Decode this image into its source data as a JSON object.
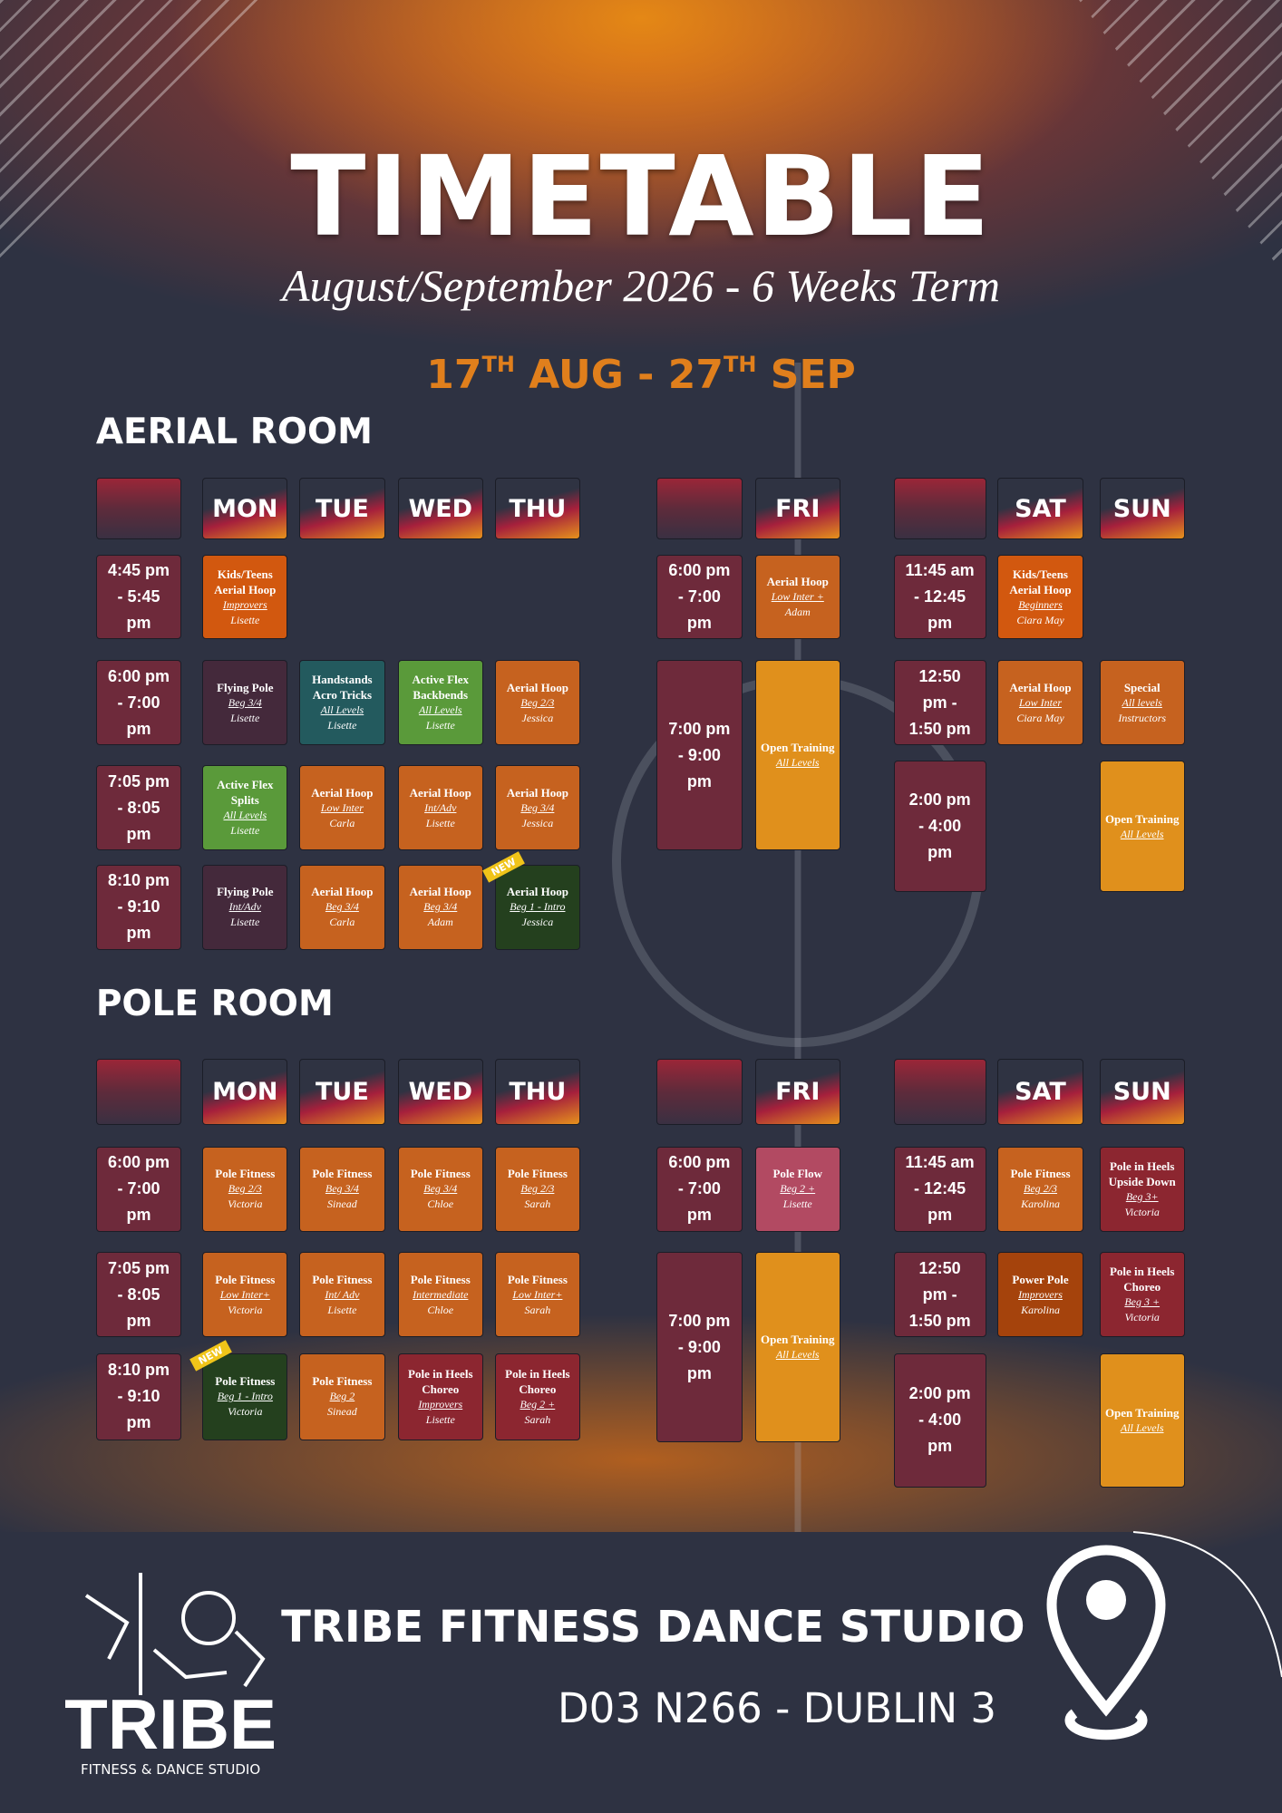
{
  "header": {
    "title": "TIMETABLE",
    "subtitle": "August/September 2026 - 6 Weeks Term",
    "dates": {
      "start_day": "17",
      "start_suffix": "TH",
      "start_month": "AUG",
      "separator": "-",
      "end_day": "27",
      "end_suffix": "TH",
      "end_month": "SEP"
    }
  },
  "rooms": [
    {
      "name": "AERIAL ROOM",
      "groups": [
        {
          "days": [
            "MON",
            "TUE",
            "WED",
            "THU"
          ],
          "slots": [
            {
              "time": "4:45 pm - 5:45 pm",
              "classes": [
                {
                  "title": "Kids/Teens Aerial Hoop",
                  "level": "Improvers",
                  "instructor": "Lisette",
                  "color": "#d2580f"
                },
                null,
                null,
                null
              ]
            },
            {
              "time": "6:00 pm - 7:00 pm",
              "classes": [
                {
                  "title": "Flying Pole",
                  "level": "Beg 3/4",
                  "instructor": "Lisette",
                  "color": "#44293b"
                },
                {
                  "title": "Handstands Acro Tricks",
                  "level": "All Levels",
                  "instructor": "Lisette",
                  "color": "#235a5e"
                },
                {
                  "title": "Active Flex Backbends",
                  "level": "All Levels",
                  "instructor": "Lisette",
                  "color": "#5a9a3a"
                },
                {
                  "title": "Aerial Hoop",
                  "level": "Beg 2/3",
                  "instructor": "Jessica",
                  "color": "#c6621f"
                }
              ]
            },
            {
              "time": "7:05 pm - 8:05 pm",
              "classes": [
                {
                  "title": "Active Flex Splits",
                  "level": "All Levels",
                  "instructor": "Lisette",
                  "color": "#5a9a3a"
                },
                {
                  "title": "Aerial Hoop",
                  "level": "Low Inter",
                  "instructor": "Carla",
                  "color": "#c6621f"
                },
                {
                  "title": "Aerial Hoop",
                  "level": "Int/Adv",
                  "instructor": "Lisette",
                  "color": "#c6621f"
                },
                {
                  "title": "Aerial Hoop",
                  "level": "Beg 3/4",
                  "instructor": "Jessica",
                  "color": "#c6621f"
                }
              ]
            },
            {
              "time": "8:10 pm - 9:10 pm",
              "classes": [
                {
                  "title": "Flying Pole",
                  "level": "Int/Adv",
                  "instructor": "Lisette",
                  "color": "#44293b"
                },
                {
                  "title": "Aerial Hoop",
                  "level": "Beg 3/4",
                  "instructor": "Carla",
                  "color": "#c6621f"
                },
                {
                  "title": "Aerial Hoop",
                  "level": "Beg 3/4",
                  "instructor": "Adam",
                  "color": "#c6621f"
                },
                {
                  "title": "Aerial Hoop",
                  "level": "Beg 1 - Intro",
                  "instructor": "Jessica",
                  "color": "#24401e",
                  "badge": "NEW"
                }
              ]
            }
          ]
        },
        {
          "days": [
            "FRI"
          ],
          "slots": [
            {
              "time": "6:00 pm - 7:00 pm",
              "classes": [
                {
                  "title": "Aerial Hoop",
                  "level": "Low Inter +",
                  "instructor": "Adam",
                  "color": "#c6621f"
                }
              ]
            },
            {
              "time": "7:00 pm - 9:00 pm",
              "classes": [
                {
                  "title": "Open Training",
                  "level": "All Levels",
                  "color": "#e0901c"
                }
              ]
            }
          ]
        },
        {
          "days": [
            "SAT",
            "SUN"
          ],
          "slots": [
            {
              "time": "11:45 am - 12:45 pm",
              "classes": [
                {
                  "title": "Kids/Teens Aerial Hoop",
                  "level": "Beginners",
                  "instructor": "Ciara May",
                  "color": "#d2580f"
                },
                null
              ]
            },
            {
              "time": "12:50 pm - 1:50 pm",
              "classes": [
                {
                  "title": "Aerial Hoop",
                  "level": "Low Inter",
                  "instructor": "Ciara May",
                  "color": "#c6621f"
                },
                {
                  "title": "Special",
                  "level": "All levels",
                  "instructor": "Instructors",
                  "color": "#c6621f"
                }
              ]
            },
            {
              "time": "2:00 pm - 4:00 pm",
              "classes": [
                null,
                {
                  "title": "Open Training",
                  "level": "All Levels",
                  "color": "#e0901c"
                }
              ]
            }
          ]
        }
      ]
    },
    {
      "name": "POLE ROOM",
      "groups": [
        {
          "days": [
            "MON",
            "TUE",
            "WED",
            "THU"
          ],
          "slots": [
            {
              "time": "6:00 pm - 7:00 pm",
              "classes": [
                {
                  "title": "Pole Fitness",
                  "level": "Beg 2/3",
                  "instructor": "Victoria",
                  "color": "#c6621f"
                },
                {
                  "title": "Pole Fitness",
                  "level": "Beg 3/4",
                  "instructor": "Sinead",
                  "color": "#c6621f"
                },
                {
                  "title": "Pole Fitness",
                  "level": "Beg 3/4",
                  "instructor": "Chloe",
                  "color": "#c6621f"
                },
                {
                  "title": "Pole Fitness",
                  "level": "Beg 2/3",
                  "instructor": "Sarah",
                  "color": "#c6621f"
                }
              ]
            },
            {
              "time": "7:05 pm - 8:05 pm",
              "classes": [
                {
                  "title": "Pole Fitness",
                  "level": "Low Inter+",
                  "instructor": "Victoria",
                  "color": "#c6621f"
                },
                {
                  "title": "Pole Fitness",
                  "level": "Int/ Adv",
                  "instructor": "Lisette",
                  "color": "#c6621f"
                },
                {
                  "title": "Pole Fitness",
                  "level": "Intermediate",
                  "instructor": "Chloe",
                  "color": "#c6621f"
                },
                {
                  "title": "Pole Fitness",
                  "level": "Low Inter+",
                  "instructor": "Sarah",
                  "color": "#c6621f"
                }
              ]
            },
            {
              "time": "8:10 pm - 9:10 pm",
              "classes": [
                {
                  "title": "Pole Fitness",
                  "level": "Beg 1 - Intro",
                  "instructor": "Victoria",
                  "color": "#24401e",
                  "badge": "NEW"
                },
                {
                  "title": "Pole Fitness",
                  "level": "Beg 2",
                  "instructor": "Sinead",
                  "color": "#c6621f"
                },
                {
                  "title": "Pole in Heels Choreo",
                  "level": "Improvers",
                  "instructor": "Lisette",
                  "color": "#8c2630"
                },
                {
                  "title": "Pole in Heels Choreo",
                  "level": "Beg 2 +",
                  "instructor": "Sarah",
                  "color": "#8c2630"
                }
              ]
            }
          ]
        },
        {
          "days": [
            "FRI"
          ],
          "slots": [
            {
              "time": "6:00 pm - 7:00 pm",
              "classes": [
                {
                  "title": "Pole Flow",
                  "level": "Beg 2 +",
                  "instructor": "Lisette",
                  "color": "#b24a62"
                }
              ]
            },
            {
              "time": "7:00 pm - 9:00 pm",
              "classes": [
                {
                  "title": "Open Training",
                  "level": "All Levels",
                  "color": "#e0901c"
                }
              ]
            }
          ]
        },
        {
          "days": [
            "SAT",
            "SUN"
          ],
          "slots": [
            {
              "time": "11:45 am - 12:45 pm",
              "classes": [
                {
                  "title": "Pole Fitness",
                  "level": "Beg 2/3",
                  "instructor": "Karolina",
                  "color": "#c6621f"
                },
                {
                  "title": "Pole in Heels Upside Down",
                  "level": "Beg 3+",
                  "instructor": "Victoria",
                  "color": "#8c2630"
                }
              ]
            },
            {
              "time": "12:50 pm - 1:50 pm",
              "classes": [
                {
                  "title": "Power Pole",
                  "level": "Improvers",
                  "instructor": "Karolina",
                  "color": "#a5430c"
                },
                {
                  "title": "Pole in Heels Choreo",
                  "level": "Beg 3 +",
                  "instructor": "Victoria",
                  "color": "#8c2630"
                }
              ]
            },
            {
              "time": "2:00 pm - 4:00 pm",
              "classes": [
                null,
                {
                  "title": "Open Training",
                  "level": "All Levels",
                  "color": "#e0901c"
                }
              ]
            }
          ]
        }
      ]
    }
  ],
  "footer": {
    "studio": "TRIBE FITNESS DANCE STUDIO",
    "address": "D03 N266 - DUBLIN 3",
    "logo_name": "TRIBE",
    "logo_tagline": "FITNESS & DANCE STUDIO"
  }
}
